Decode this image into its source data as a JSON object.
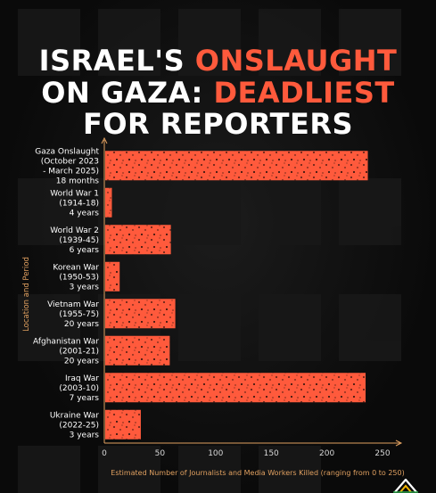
{
  "title": {
    "line1_white": "ISRAEL'S",
    "line1_orange": "ONSLAUGHT",
    "line2_white": "ON GAZA:",
    "line2_orange": "DEADLIEST",
    "line3_white": "FOR REPORTERS"
  },
  "colors": {
    "bar": "#ff5a3c",
    "title_accent": "#ff5a3c",
    "axis": "#e0a060",
    "background": "#0d0d0d"
  },
  "chart_data": {
    "type": "bar",
    "orientation": "horizontal",
    "categories": [
      [
        "Gaza Onslaught",
        "(October 2023",
        "- March 2025)",
        "18 months"
      ],
      [
        "World War 1",
        "(1914-18)",
        "4 years"
      ],
      [
        "World War 2",
        "(1939-45)",
        "6 years"
      ],
      [
        "Korean War",
        "(1950-53)",
        "3 years"
      ],
      [
        "Vietnam War",
        "(1955-75)",
        "20 years"
      ],
      [
        "Afghanistan War",
        "(2001-21)",
        "20 years"
      ],
      [
        "Iraq War",
        "(2003-10)",
        "7 years"
      ],
      [
        "Ukraine War",
        "(2022-25)",
        "3 years"
      ]
    ],
    "values": [
      236,
      6,
      59,
      13,
      63,
      58,
      234,
      32
    ],
    "xlabel": "Estimated Number of Journalists and Media Workers Killed (ranging from 0 to 250)",
    "ylabel": "Location and Period",
    "xlim": [
      0,
      260
    ],
    "xticks": [
      0,
      50,
      100,
      150,
      200,
      250
    ],
    "grid": false
  }
}
